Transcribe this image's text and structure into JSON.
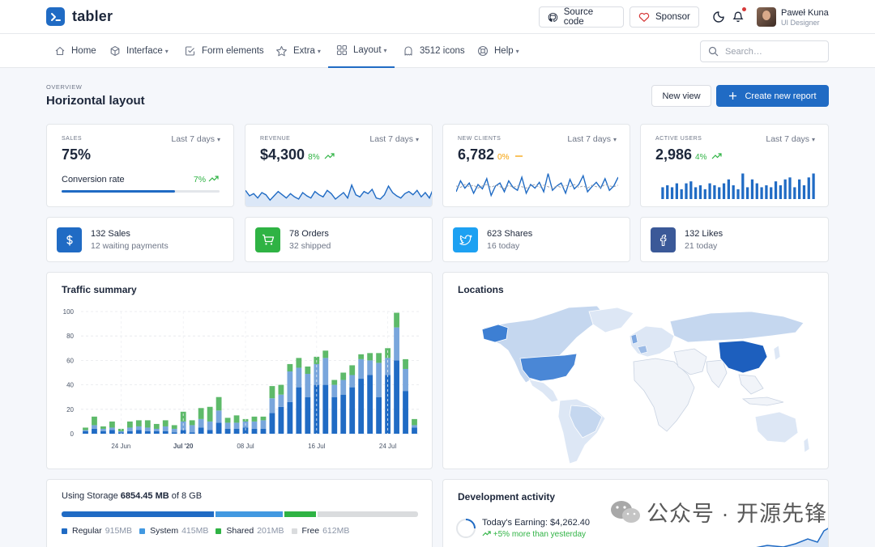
{
  "brand": {
    "name": "tabler",
    "color": "#206bc4"
  },
  "header": {
    "source_code": "Source code",
    "sponsor": "Sponsor",
    "user": {
      "name": "Paweł Kuna",
      "role": "UI Designer"
    }
  },
  "nav": {
    "items": [
      {
        "label": "Home",
        "icon": "home-icon",
        "dropdown": false
      },
      {
        "label": "Interface",
        "icon": "package-icon",
        "dropdown": true
      },
      {
        "label": "Form elements",
        "icon": "checkbox-icon",
        "dropdown": false
      },
      {
        "label": "Extra",
        "icon": "star-icon",
        "dropdown": true
      },
      {
        "label": "Layout",
        "icon": "layout-icon",
        "dropdown": true,
        "active": true
      },
      {
        "label": "3512 icons",
        "icon": "ghost-icon",
        "dropdown": false
      },
      {
        "label": "Help",
        "icon": "lifebuoy-icon",
        "dropdown": true
      }
    ],
    "search_placeholder": "Search…"
  },
  "page": {
    "pretitle": "OVERVIEW",
    "title": "Horizontal layout",
    "new_view": "New view",
    "create_report": "Create new report"
  },
  "kpis": [
    {
      "label": "SALES",
      "period": "Last 7 days",
      "value": "75%",
      "sublabel": "Conversion rate",
      "change": "7%",
      "trend": "up",
      "progress": 0.72
    },
    {
      "label": "REVENUE",
      "period": "Last 7 days",
      "value": "$4,300",
      "change": "8%",
      "trend": "up"
    },
    {
      "label": "NEW CLIENTS",
      "period": "Last 7 days",
      "value": "6,782",
      "change": "0%",
      "trend": "flat"
    },
    {
      "label": "ACTIVE USERS",
      "period": "Last 7 days",
      "value": "2,986",
      "change": "4%",
      "trend": "up"
    }
  ],
  "mini_cards": [
    {
      "title": "132 Sales",
      "subtitle": "12 waiting payments",
      "icon": "currency-dollar-icon",
      "color": "#206bc4"
    },
    {
      "title": "78 Orders",
      "subtitle": "32 shipped",
      "icon": "shopping-cart-icon",
      "color": "#2fb344"
    },
    {
      "title": "623 Shares",
      "subtitle": "16 today",
      "icon": "twitter-icon",
      "color": "#1da1f2"
    },
    {
      "title": "132 Likes",
      "subtitle": "21 today",
      "icon": "facebook-icon",
      "color": "#3b5998"
    }
  ],
  "traffic": {
    "title": "Traffic summary"
  },
  "locations": {
    "title": "Locations"
  },
  "storage": {
    "prefix": "Using Storage ",
    "used": "6854.45 MB",
    "suffix": " of 8 GB",
    "segments": [
      {
        "label": "Regular",
        "value": "915MB",
        "color": "#206bc4",
        "fraction": 0.446
      },
      {
        "label": "System",
        "value": "415MB",
        "color": "#4299e1",
        "fraction": 0.202
      },
      {
        "label": "Shared",
        "value": "201MB",
        "color": "#2fb344",
        "fraction": 0.098
      },
      {
        "label": "Free",
        "value": "612MB",
        "color": "#dadcde",
        "fraction": 0.298
      }
    ]
  },
  "dev_activity": {
    "title": "Development activity",
    "earning_label": "Today's Earning: ",
    "earning_value": "$4,262.40",
    "change": "+5% more than yesterday"
  },
  "watermark": {
    "text": "公众号 · 开源先锋"
  },
  "chart_data": [
    {
      "type": "bar",
      "title": "Traffic summary",
      "stacked": true,
      "ylim": [
        0,
        100
      ],
      "yticks": [
        0,
        20,
        40,
        60,
        80,
        100
      ],
      "xtick_labels": [
        "24 Jun",
        "Jul '20",
        "08 Jul",
        "16 Jul",
        "24 Jul"
      ],
      "x": [
        "2020-06-20",
        "2020-06-21",
        "2020-06-22",
        "2020-06-23",
        "2020-06-24",
        "2020-06-25",
        "2020-06-26",
        "2020-06-27",
        "2020-06-28",
        "2020-06-29",
        "2020-06-30",
        "2020-07-01",
        "2020-07-02",
        "2020-07-03",
        "2020-07-04",
        "2020-07-05",
        "2020-07-06",
        "2020-07-07",
        "2020-07-08",
        "2020-07-09",
        "2020-07-10",
        "2020-07-11",
        "2020-07-12",
        "2020-07-13",
        "2020-07-14",
        "2020-07-15",
        "2020-07-16",
        "2020-07-17",
        "2020-07-18",
        "2020-07-19",
        "2020-07-20",
        "2020-07-21",
        "2020-07-22",
        "2020-07-23",
        "2020-07-24",
        "2020-07-25",
        "2020-07-26",
        "2020-07-27"
      ],
      "series": [
        {
          "color": "#206bc4",
          "values": [
            2,
            4,
            2,
            3,
            1,
            2,
            3,
            2,
            2,
            2,
            1,
            3,
            1,
            5,
            3,
            9,
            4,
            4,
            5,
            4,
            4,
            17,
            22,
            26,
            38,
            30,
            40,
            40,
            30,
            32,
            38,
            45,
            48,
            30,
            48,
            60,
            35,
            5
          ]
        },
        {
          "color": "#79a6dc",
          "values": [
            1,
            3,
            2,
            2,
            1,
            3,
            3,
            3,
            2,
            4,
            3,
            7,
            6,
            7,
            7,
            10,
            5,
            5,
            5,
            6,
            7,
            12,
            10,
            25,
            16,
            19,
            17,
            22,
            10,
            12,
            10,
            16,
            12,
            28,
            14,
            27,
            18,
            2
          ]
        },
        {
          "color": "#5eba6a",
          "values": [
            2,
            7,
            2,
            5,
            2,
            5,
            5,
            6,
            4,
            5,
            3,
            8,
            4,
            9,
            12,
            11,
            4,
            6,
            2,
            4,
            3,
            10,
            8,
            6,
            8,
            6,
            6,
            6,
            4,
            6,
            8,
            4,
            6,
            8,
            8,
            12,
            8,
            5
          ]
        }
      ]
    },
    {
      "type": "area",
      "title": "",
      "series": [
        {
          "color": "#206bc4",
          "values": [
            37,
            32,
            34,
            30,
            35,
            33,
            28,
            32,
            36,
            33,
            30,
            34,
            31,
            29,
            35,
            32,
            30,
            36,
            33,
            31,
            37,
            34,
            29,
            32,
            35,
            30,
            42,
            33,
            31,
            36,
            34,
            38,
            30,
            29,
            33,
            41,
            35,
            32,
            30,
            34,
            36,
            33,
            37,
            31,
            35,
            30,
            39
          ]
        }
      ]
    },
    {
      "type": "line",
      "title": "",
      "series": [
        {
          "color": "#206bc4",
          "values": [
            40,
            55,
            45,
            52,
            38,
            50,
            44,
            58,
            35,
            48,
            52,
            40,
            55,
            46,
            42,
            60,
            38,
            50,
            45,
            53,
            40,
            65,
            42,
            48,
            52,
            38,
            57,
            44,
            50,
            62,
            40,
            47,
            53,
            45,
            58,
            42,
            48,
            60
          ]
        },
        {
          "color": "#9aa0ac",
          "dashed": true,
          "values": [
            48,
            46,
            50,
            47,
            49,
            45,
            48,
            50,
            46,
            49,
            47,
            44,
            49,
            46,
            48,
            47,
            45,
            48,
            50,
            46,
            49,
            47,
            45,
            48,
            46,
            49,
            47,
            50,
            46,
            48,
            45,
            49,
            47,
            46,
            50,
            48,
            47,
            49
          ]
        }
      ]
    },
    {
      "type": "bar",
      "title": "",
      "series": [
        {
          "color": "#206bc4",
          "values": [
            12,
            14,
            12,
            16,
            10,
            16,
            18,
            12,
            14,
            10,
            16,
            14,
            12,
            16,
            20,
            14,
            10,
            26,
            12,
            20,
            16,
            12,
            14,
            12,
            18,
            14,
            20,
            22,
            12,
            20,
            14,
            22,
            26
          ]
        }
      ]
    }
  ]
}
